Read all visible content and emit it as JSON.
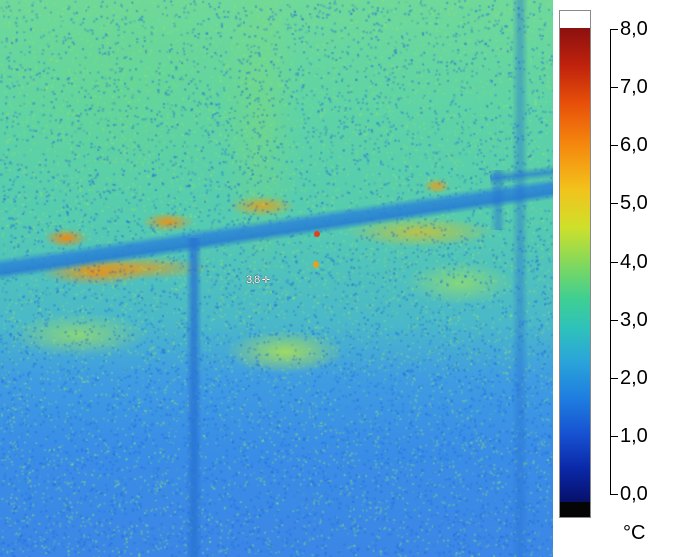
{
  "thermal_image": {
    "spot_readout": "3,8",
    "spot_marker_icon": "crosshair-icon"
  },
  "scale": {
    "unit": "°C",
    "min": 0.0,
    "max": 8.0,
    "ticks": [
      {
        "value": 8.0,
        "label": "8,0"
      },
      {
        "value": 7.0,
        "label": "7,0"
      },
      {
        "value": 6.0,
        "label": "6,0"
      },
      {
        "value": 5.0,
        "label": "5,0"
      },
      {
        "value": 4.0,
        "label": "4,0"
      },
      {
        "value": 3.0,
        "label": "3,0"
      },
      {
        "value": 2.0,
        "label": "2,0"
      },
      {
        "value": 1.0,
        "label": "1,0"
      },
      {
        "value": 0.0,
        "label": "0,0"
      }
    ],
    "colors": {
      "top_cap": "#ffffff",
      "hot": "#8b1010",
      "mid": "#7fd85e",
      "cold": "#08106a",
      "bottom_cap": "#050505"
    }
  }
}
